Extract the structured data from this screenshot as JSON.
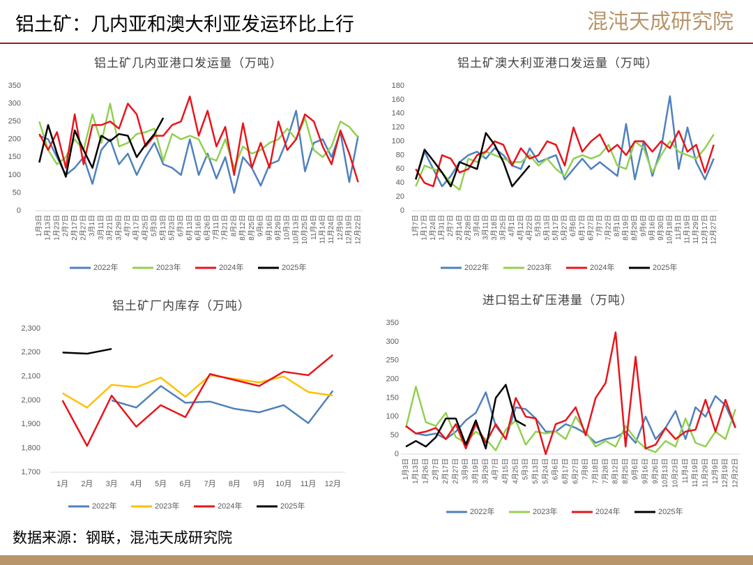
{
  "header": {
    "title": "铝土矿：几内亚和澳大利亚发运环比上行",
    "logo": "混沌天成研究院"
  },
  "source": "数据来源：钢联，混沌天成研究院",
  "chart_data": [
    {
      "type": "line",
      "title": "铝土矿几内亚港口发运量（万吨）",
      "categories": [
        "1月3日",
        "1月13日",
        "1月23日",
        "2月7日",
        "2月17日",
        "2月27日",
        "3月1日",
        "3月11日",
        "3月21日",
        "3月29日",
        "4月7日",
        "4月17日",
        "4月25日",
        "5月3日",
        "5月13日",
        "5月23日",
        "6月3日",
        "6月13日",
        "6月16日",
        "6月26日",
        "7月11日",
        "7月21日",
        "8月2日",
        "8月12日",
        "8月25日",
        "9月6日",
        "9月16日",
        "9月29日",
        "10月3日",
        "10月13日",
        "10月25日",
        "11月4日",
        "11月14日",
        "11月24日",
        "12月9日",
        "12月19日",
        "12月22日"
      ],
      "ylim": [
        0,
        350
      ],
      "yticks": [
        0,
        50,
        100,
        150,
        200,
        250,
        300,
        350
      ],
      "series": [
        {
          "name": "2022年",
          "color": "#4f81bd",
          "values": [
            210,
            200,
            150,
            100,
            120,
            150,
            75,
            170,
            200,
            130,
            160,
            100,
            150,
            190,
            130,
            120,
            100,
            200,
            100,
            160,
            90,
            150,
            50,
            150,
            120,
            70,
            130,
            140,
            200,
            280,
            110,
            190,
            200,
            150,
            220,
            80,
            210
          ]
        },
        {
          "name": "2023年",
          "color": "#92d050",
          "values": [
            250,
            170,
            130,
            150,
            200,
            170,
            270,
            190,
            300,
            180,
            190,
            215,
            220,
            230,
            140,
            215,
            200,
            210,
            200,
            150,
            140,
            200,
            120,
            180,
            160,
            170,
            190,
            200,
            230,
            200,
            260,
            170,
            150,
            180,
            250,
            235,
            205
          ]
        },
        {
          "name": "2024年",
          "color": "#e8141b",
          "values": [
            215,
            170,
            220,
            120,
            270,
            130,
            240,
            240,
            250,
            230,
            300,
            270,
            180,
            210,
            210,
            240,
            250,
            320,
            210,
            280,
            180,
            235,
            100,
            245,
            120,
            190,
            120,
            250,
            170,
            200,
            270,
            250,
            180,
            130,
            225,
            160,
            80
          ]
        },
        {
          "name": "2025年",
          "color": "#000000",
          "values": [
            135,
            240,
            160,
            95,
            225,
            170,
            120,
            210,
            195,
            215,
            210,
            150,
            185,
            215,
            260,
            null,
            null,
            null,
            null,
            null,
            null,
            null,
            null,
            null,
            null,
            null,
            null,
            null,
            null,
            null,
            null,
            null,
            null,
            null,
            null,
            null,
            null
          ]
        }
      ]
    },
    {
      "type": "line",
      "title": "铝土矿澳大利亚港口发运量（万吨）",
      "categories": [
        "1月7日",
        "1月17日",
        "1月24日",
        "1月31日",
        "2月7日",
        "2月14日",
        "2月28日",
        "3月4日",
        "3月11日",
        "3月18日",
        "3月25日",
        "4月1日",
        "4月12日",
        "4月22日",
        "5月3日",
        "5月13日",
        "5月17日",
        "5月27日",
        "6月6日",
        "6月17日",
        "6月27日",
        "7月7日",
        "7月22日",
        "8月1日",
        "8月19日",
        "8月29日",
        "9月6日",
        "9月16日",
        "9月30日",
        "10月18日",
        "11月1日",
        "11月19日",
        "11月29日",
        "12月17日",
        "12月27日"
      ],
      "ylim": [
        0,
        180
      ],
      "yticks": [
        0,
        20,
        40,
        60,
        80,
        100,
        120,
        140,
        160,
        180
      ],
      "series": [
        {
          "name": "2022年",
          "color": "#4f81bd",
          "values": [
            45,
            85,
            60,
            35,
            50,
            70,
            80,
            85,
            75,
            90,
            80,
            65,
            60,
            90,
            70,
            75,
            80,
            45,
            60,
            75,
            60,
            70,
            60,
            50,
            125,
            45,
            100,
            50,
            90,
            165,
            60,
            120,
            70,
            45,
            75
          ]
        },
        {
          "name": "2023年",
          "color": "#92d050",
          "values": [
            35,
            65,
            60,
            55,
            40,
            30,
            75,
            70,
            85,
            80,
            75,
            70,
            70,
            80,
            65,
            75,
            60,
            50,
            75,
            80,
            75,
            80,
            95,
            65,
            60,
            100,
            90,
            55,
            80,
            100,
            85,
            80,
            75,
            90,
            110
          ]
        },
        {
          "name": "2024年",
          "color": "#e8141b",
          "values": [
            60,
            40,
            35,
            80,
            75,
            55,
            60,
            80,
            85,
            100,
            95,
            65,
            90,
            75,
            80,
            100,
            95,
            65,
            120,
            85,
            100,
            110,
            85,
            95,
            80,
            100,
            100,
            85,
            100,
            90,
            115,
            85,
            95,
            55,
            95
          ]
        },
        {
          "name": "2025年",
          "color": "#000000",
          "values": [
            45,
            88,
            72,
            55,
            35,
            70,
            65,
            60,
            112,
            95,
            70,
            35,
            50,
            65,
            null,
            null,
            null,
            null,
            null,
            null,
            null,
            null,
            null,
            null,
            null,
            null,
            null,
            null,
            null,
            null,
            null,
            null,
            null,
            null,
            null
          ]
        }
      ]
    },
    {
      "type": "line",
      "title": "铝土矿厂内库存（万吨）",
      "categories": [
        "1月",
        "2月",
        "3月",
        "4月",
        "5月",
        "6月",
        "7月",
        "8月",
        "9月",
        "10月",
        "11月",
        "12月"
      ],
      "ylim": [
        1700,
        2300
      ],
      "yticks": [
        {
          "value": 1700,
          "label": "1,700"
        },
        {
          "value": 1800,
          "label": "1,800"
        },
        {
          "value": 1900,
          "label": "1,900"
        },
        {
          "value": 2000,
          "label": "2,000"
        },
        {
          "value": 2100,
          "label": "2,100"
        },
        {
          "value": 2200,
          "label": "2,200"
        },
        {
          "value": 2300,
          "label": "2,300"
        }
      ],
      "series": [
        {
          "name": "2022年",
          "color": "#4f81bd",
          "values": [
            null,
            null,
            2000,
            1970,
            2060,
            1990,
            1995,
            1965,
            1950,
            1980,
            1905,
            2040
          ]
        },
        {
          "name": "2023年",
          "color": "#ffc000",
          "values": [
            2030,
            1970,
            2065,
            2055,
            2095,
            2015,
            2105,
            2090,
            2075,
            2100,
            2035,
            2020
          ]
        },
        {
          "name": "2024年",
          "color": "#e8141b",
          "values": [
            2000,
            1810,
            2020,
            1890,
            1980,
            1930,
            2110,
            2085,
            2060,
            2120,
            2105,
            2190
          ]
        },
        {
          "name": "2025年",
          "color": "#000000",
          "values": [
            2200,
            2195,
            2215,
            null,
            null,
            null,
            null,
            null,
            null,
            null,
            null,
            null
          ]
        }
      ]
    },
    {
      "type": "line",
      "title": "进口铝土矿压港量（万吨）",
      "categories": [
        "1月3日",
        "1月13日",
        "1月26日",
        "2月7日",
        "2月17日",
        "2月27日",
        "3月9日",
        "3月19日",
        "3月29日",
        "4月7日",
        "4月15日",
        "4月25日",
        "5月3日",
        "5月13日",
        "5月24日",
        "6月6日",
        "6月17日",
        "6月27日",
        "7月8日",
        "7月18日",
        "7月28日",
        "8月12日",
        "8月25日",
        "9月6日",
        "9月16日",
        "9月26日",
        "10月13日",
        "10月23日",
        "11月4日",
        "11月19日",
        "11月29日",
        "12月9日",
        "12月19日",
        "12月22日"
      ],
      "ylim": [
        0,
        350
      ],
      "yticks": [
        0,
        50,
        100,
        150,
        200,
        250,
        300,
        350
      ],
      "series": [
        {
          "name": "2022年",
          "color": "#4f81bd",
          "values": [
            75,
            55,
            50,
            55,
            40,
            60,
            90,
            110,
            165,
            75,
            40,
            125,
            120,
            95,
            60,
            60,
            80,
            70,
            55,
            30,
            40,
            45,
            60,
            30,
            100,
            40,
            70,
            115,
            40,
            125,
            100,
            155,
            130,
            70
          ]
        },
        {
          "name": "2023年",
          "color": "#92d050",
          "values": [
            70,
            180,
            85,
            75,
            110,
            45,
            30,
            60,
            40,
            10,
            65,
            90,
            25,
            60,
            55,
            60,
            40,
            100,
            60,
            20,
            35,
            20,
            75,
            40,
            15,
            5,
            35,
            20,
            95,
            30,
            20,
            60,
            40,
            120
          ]
        },
        {
          "name": "2024年",
          "color": "#e8141b",
          "values": [
            75,
            55,
            60,
            70,
            40,
            80,
            15,
            80,
            30,
            80,
            40,
            150,
            100,
            95,
            0,
            80,
            90,
            125,
            50,
            150,
            190,
            325,
            20,
            260,
            15,
            25,
            70,
            40,
            60,
            65,
            145,
            60,
            145,
            70
          ]
        },
        {
          "name": "2025年",
          "color": "#000000",
          "values": [
            20,
            35,
            20,
            45,
            95,
            95,
            25,
            90,
            15,
            150,
            185,
            90,
            75,
            null,
            null,
            null,
            null,
            null,
            null,
            null,
            null,
            null,
            null,
            null,
            null,
            null,
            null,
            null,
            null,
            null,
            null,
            null,
            null,
            null
          ]
        }
      ]
    }
  ]
}
